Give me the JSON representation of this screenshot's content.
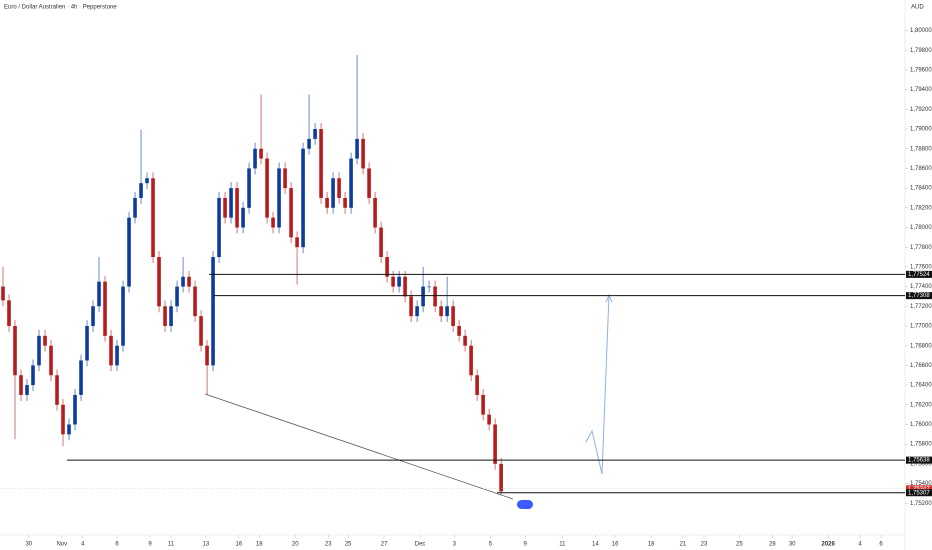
{
  "chart_data": {
    "type": "candlestick",
    "title": "Euro / Dollar Australien · 4h · Pepperstone",
    "currency": "AUD",
    "up_color": "#0d3c9e",
    "down_color": "#b71c1c",
    "open": [
      1.774,
      1.7726,
      1.77,
      1.765,
      1.763,
      1.764,
      1.766,
      1.769,
      1.768,
      1.765,
      1.762,
      1.759,
      1.76,
      1.763,
      1.7665,
      1.77,
      1.772,
      1.7745,
      1.769,
      1.766,
      1.768,
      1.774,
      1.781,
      1.783,
      1.7845,
      1.785,
      1.777,
      1.772,
      1.77,
      1.772,
      1.774,
      1.775,
      1.774,
      1.771,
      1.768,
      1.766,
      1.777,
      1.783,
      1.781,
      1.784,
      1.78,
      1.782,
      1.786,
      1.788,
      1.787,
      1.781,
      1.78,
      1.786,
      1.784,
      1.779,
      1.778,
      1.788,
      1.789,
      1.79,
      1.783,
      1.782,
      1.785,
      1.783,
      1.782,
      1.787,
      1.789,
      1.786,
      1.783,
      1.78,
      1.777,
      1.775,
      1.774,
      1.775,
      1.773,
      1.771,
      1.772,
      1.774,
      1.774,
      1.772,
      1.771,
      1.772,
      1.77,
      1.769,
      1.768,
      1.765,
      1.763,
      1.761,
      1.76,
      1.756
    ],
    "high": [
      1.776,
      1.7732,
      1.7706,
      1.7656,
      1.7646,
      1.7666,
      1.7696,
      1.7696,
      1.7686,
      1.7656,
      1.7626,
      1.7606,
      1.7636,
      1.7671,
      1.7706,
      1.7726,
      1.777,
      1.7751,
      1.7696,
      1.7686,
      1.7746,
      1.7816,
      1.7836,
      1.7899,
      1.7856,
      1.7856,
      1.7776,
      1.7726,
      1.7726,
      1.7746,
      1.777,
      1.7756,
      1.7746,
      1.7716,
      1.7686,
      1.7776,
      1.7836,
      1.7836,
      1.7846,
      1.7846,
      1.7826,
      1.7866,
      1.7886,
      1.7935,
      1.7876,
      1.7816,
      1.7866,
      1.7866,
      1.7846,
      1.7796,
      1.7886,
      1.7935,
      1.7906,
      1.7906,
      1.7836,
      1.7856,
      1.7856,
      1.7836,
      1.7876,
      1.7975,
      1.7896,
      1.7866,
      1.7836,
      1.7806,
      1.7776,
      1.7756,
      1.7756,
      1.7756,
      1.7736,
      1.7726,
      1.776,
      1.7746,
      1.7746,
      1.7726,
      1.775,
      1.7726,
      1.7706,
      1.7696,
      1.7686,
      1.7656,
      1.7636,
      1.7616,
      1.7606,
      1.7566
    ],
    "low": [
      1.772,
      1.7694,
      1.7585,
      1.7624,
      1.7624,
      1.7634,
      1.7654,
      1.7674,
      1.7644,
      1.7614,
      1.7578,
      1.7584,
      1.7594,
      1.7624,
      1.7659,
      1.7694,
      1.7714,
      1.7684,
      1.7654,
      1.7654,
      1.7674,
      1.7734,
      1.7804,
      1.7824,
      1.7839,
      1.7764,
      1.7714,
      1.7694,
      1.7694,
      1.7714,
      1.7734,
      1.7734,
      1.7704,
      1.7674,
      1.763,
      1.7654,
      1.7764,
      1.7804,
      1.7804,
      1.7794,
      1.7794,
      1.7814,
      1.7854,
      1.7864,
      1.7804,
      1.7794,
      1.7794,
      1.7834,
      1.7784,
      1.7742,
      1.7774,
      1.7874,
      1.7884,
      1.7824,
      1.7814,
      1.7814,
      1.7824,
      1.7814,
      1.7814,
      1.7864,
      1.7854,
      1.7824,
      1.7794,
      1.7764,
      1.7744,
      1.7734,
      1.7734,
      1.7724,
      1.7704,
      1.7704,
      1.7714,
      1.7734,
      1.7714,
      1.7704,
      1.7704,
      1.7694,
      1.7684,
      1.7674,
      1.7644,
      1.7624,
      1.7604,
      1.7594,
      1.7554,
      1.7528
    ],
    "close": [
      1.7726,
      1.77,
      1.765,
      1.763,
      1.764,
      1.766,
      1.769,
      1.768,
      1.765,
      1.762,
      1.759,
      1.76,
      1.763,
      1.7665,
      1.77,
      1.772,
      1.7745,
      1.769,
      1.766,
      1.768,
      1.774,
      1.781,
      1.783,
      1.7845,
      1.785,
      1.777,
      1.772,
      1.77,
      1.772,
      1.774,
      1.775,
      1.774,
      1.771,
      1.768,
      1.766,
      1.777,
      1.783,
      1.781,
      1.784,
      1.78,
      1.782,
      1.786,
      1.788,
      1.787,
      1.781,
      1.78,
      1.786,
      1.784,
      1.779,
      1.778,
      1.788,
      1.789,
      1.79,
      1.783,
      1.782,
      1.785,
      1.783,
      1.782,
      1.787,
      1.789,
      1.786,
      1.783,
      1.78,
      1.777,
      1.775,
      1.774,
      1.775,
      1.773,
      1.771,
      1.772,
      1.774,
      1.774,
      1.772,
      1.771,
      1.772,
      1.77,
      1.769,
      1.768,
      1.765,
      1.763,
      1.761,
      1.76,
      1.756,
      1.7532
    ],
    "xlim": [
      -0.5,
      150.3
    ],
    "xticks": [
      {
        "value": 4.3,
        "label": "30"
      },
      {
        "value": 9.8,
        "label": "Nov"
      },
      {
        "value": 13.3,
        "label": "4"
      },
      {
        "value": 19,
        "label": "6"
      },
      {
        "value": 24.5,
        "label": "9"
      },
      {
        "value": 28,
        "label": "11"
      },
      {
        "value": 33.8,
        "label": "13"
      },
      {
        "value": 39.3,
        "label": "16"
      },
      {
        "value": 42.7,
        "label": "18"
      },
      {
        "value": 48.7,
        "label": "20"
      },
      {
        "value": 54.2,
        "label": "23"
      },
      {
        "value": 57.5,
        "label": "25"
      },
      {
        "value": 63.5,
        "label": "27"
      },
      {
        "value": 69.5,
        "label": "Dec"
      },
      {
        "value": 75.2,
        "label": "3"
      },
      {
        "value": 81.2,
        "label": "5"
      },
      {
        "value": 87,
        "label": "9"
      },
      {
        "value": 93.2,
        "label": "11"
      },
      {
        "value": 98.7,
        "label": "14"
      },
      {
        "value": 102,
        "label": "16"
      },
      {
        "value": 108,
        "label": "18"
      },
      {
        "value": 113.3,
        "label": "21"
      },
      {
        "value": 116.8,
        "label": "23"
      },
      {
        "value": 122.7,
        "label": "25"
      },
      {
        "value": 128.2,
        "label": "28"
      },
      {
        "value": 131.5,
        "label": "30"
      },
      {
        "value": 137.5,
        "label": "2026"
      },
      {
        "value": 142.8,
        "label": "4"
      },
      {
        "value": 146.3,
        "label": "6"
      }
    ],
    "ylim": [
      1.7503,
      1.8031
    ],
    "yticks": [
      {
        "value": 1.752,
        "label": "1,75200"
      },
      {
        "value": 1.754,
        "label": "1,75400"
      },
      {
        "value": 1.756,
        "label": "1,75600"
      },
      {
        "value": 1.758,
        "label": "1,75800"
      },
      {
        "value": 1.76,
        "label": "1,76000"
      },
      {
        "value": 1.762,
        "label": "1,76200"
      },
      {
        "value": 1.764,
        "label": "1,76400"
      },
      {
        "value": 1.766,
        "label": "1,76600"
      },
      {
        "value": 1.768,
        "label": "1,76800"
      },
      {
        "value": 1.77,
        "label": "1,77000"
      },
      {
        "value": 1.772,
        "label": "1,77200"
      },
      {
        "value": 1.774,
        "label": "1,77400"
      },
      {
        "value": 1.776,
        "label": "1,77600"
      },
      {
        "value": 1.778,
        "label": "1,77800"
      },
      {
        "value": 1.78,
        "label": "1,78000"
      },
      {
        "value": 1.782,
        "label": "1,78200"
      },
      {
        "value": 1.784,
        "label": "1,78400"
      },
      {
        "value": 1.786,
        "label": "1,78600"
      },
      {
        "value": 1.788,
        "label": "1,78800"
      },
      {
        "value": 1.79,
        "label": "1,79000"
      },
      {
        "value": 1.792,
        "label": "1,79200"
      },
      {
        "value": 1.794,
        "label": "1,79400"
      },
      {
        "value": 1.796,
        "label": "1,79600"
      },
      {
        "value": 1.798,
        "label": "1,79800"
      },
      {
        "value": 1.8,
        "label": "1,80000"
      }
    ],
    "levels": [
      {
        "value": 1.77524,
        "label": "1,77524",
        "color": "#111111"
      },
      {
        "value": 1.77308,
        "label": "1,77308",
        "color": "#111111"
      },
      {
        "value": 1.75638,
        "label": "1,75638",
        "color": "#111111"
      },
      {
        "value": 1.75347,
        "label": "1,75347",
        "color": "#d32f2f"
      },
      {
        "value": 1.75307,
        "label": "1,75307",
        "color": "#111111"
      }
    ]
  }
}
